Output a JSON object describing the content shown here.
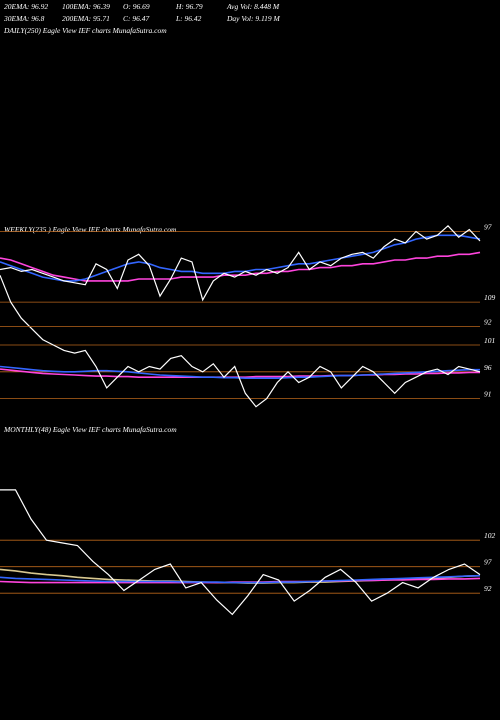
{
  "header": {
    "row1": [
      "20EMA: 96.92",
      "100EMA: 96.39",
      "O: 96.69",
      "H: 96.79",
      "Avg Vol: 8.448 M"
    ],
    "row2": [
      "30EMA: 96.8",
      "200EMA: 95.71",
      "C: 96.47",
      "L: 96.42",
      "Day Vol: 9.119 M"
    ]
  },
  "chart_data": [
    {
      "type": "line",
      "title": "DAILY(250) Eagle View IEF charts MunafaSutra.com",
      "categories": [
        null,
        null,
        null,
        null,
        null,
        null,
        null,
        null,
        null,
        null,
        null,
        null,
        null,
        null,
        null,
        null,
        null,
        null,
        null,
        null,
        null,
        null,
        null,
        null,
        null,
        null,
        null,
        null,
        null,
        null,
        null,
        null,
        null,
        null,
        null,
        null,
        null,
        null,
        null,
        null,
        null,
        null,
        null,
        null,
        null,
        null
      ],
      "ylim": [
        88,
        116
      ],
      "levels": [
        109,
        101,
        96,
        91
      ],
      "level_color": "#b8651b",
      "series": [
        {
          "color": "#ff44dd",
          "values": [
            96.5,
            96.3,
            96.1,
            95.9,
            95.7,
            95.6,
            95.5,
            95.4,
            95.3,
            95.2,
            95.2,
            95.1,
            95.1,
            95.0,
            95.0,
            95.0,
            95.0,
            95.0,
            95.0,
            95.0,
            95.0,
            95.0,
            95.0,
            95.0,
            95.1,
            95.1,
            95.1,
            95.1,
            95.2,
            95.2,
            95.2,
            95.3,
            95.3,
            95.3,
            95.4,
            95.4,
            95.5,
            95.5,
            95.6,
            95.6,
            95.7,
            95.7,
            95.8,
            95.8,
            95.9,
            95.9
          ]
        },
        {
          "color": "#3366ff",
          "values": [
            97,
            96.8,
            96.6,
            96.4,
            96.2,
            96.1,
            96.0,
            96.0,
            96.1,
            96.2,
            96.2,
            96.1,
            96.0,
            95.8,
            95.6,
            95.4,
            95.3,
            95.2,
            95.1,
            95.0,
            95.0,
            94.9,
            94.9,
            94.8,
            94.8,
            94.8,
            94.8,
            94.9,
            95.0,
            95.0,
            95.1,
            95.2,
            95.3,
            95.3,
            95.4,
            95.5,
            95.6,
            95.7,
            95.8,
            95.9,
            96.0,
            96.1,
            96.2,
            96.3,
            96.4,
            96.4
          ]
        },
        {
          "color": "#ffffff",
          "values": [
            114,
            109,
            106,
            104,
            102,
            101,
            100,
            99.5,
            100,
            97,
            93,
            95,
            97,
            96,
            97,
            96.5,
            98.5,
            99,
            97,
            96,
            97.5,
            95,
            97,
            92,
            89.5,
            91,
            94,
            96,
            94,
            95,
            97,
            96,
            93,
            95,
            97,
            96,
            94,
            92,
            94,
            95,
            96,
            96.5,
            95.5,
            97,
            96.5,
            96
          ]
        }
      ]
    },
    {
      "type": "line",
      "title": "WEEKLY(235 ) Eagle View IEF charts MunafaSutra.com",
      "categories": [
        null,
        null,
        null,
        null,
        null,
        null,
        null,
        null,
        null,
        null,
        null,
        null,
        null,
        null,
        null,
        null,
        null,
        null,
        null,
        null,
        null,
        null,
        null,
        null,
        null,
        null,
        null,
        null,
        null,
        null,
        null,
        null,
        null,
        null,
        null,
        null,
        null,
        null,
        null,
        null,
        null,
        null,
        null,
        null,
        null,
        null
      ],
      "ylim": [
        91,
        97.5
      ],
      "levels": [
        97,
        92
      ],
      "level_color": "#b8651b",
      "series": [
        {
          "color": "#ff44dd",
          "values": [
            95.6,
            95.5,
            95.3,
            95.1,
            94.9,
            94.7,
            94.6,
            94.5,
            94.4,
            94.4,
            94.4,
            94.4,
            94.4,
            94.5,
            94.5,
            94.5,
            94.5,
            94.6,
            94.6,
            94.6,
            94.6,
            94.7,
            94.7,
            94.7,
            94.8,
            94.8,
            94.9,
            94.9,
            95.0,
            95.0,
            95.1,
            95.1,
            95.2,
            95.2,
            95.3,
            95.3,
            95.4,
            95.5,
            95.5,
            95.6,
            95.6,
            95.7,
            95.7,
            95.8,
            95.8,
            95.9
          ]
        },
        {
          "color": "#3366ff",
          "values": [
            95.4,
            95.2,
            95.0,
            94.8,
            94.6,
            94.5,
            94.4,
            94.4,
            94.5,
            94.7,
            94.9,
            95.1,
            95.3,
            95.4,
            95.3,
            95.1,
            95.0,
            94.9,
            94.9,
            94.8,
            94.8,
            94.8,
            94.9,
            94.9,
            95.0,
            95.0,
            95.1,
            95.2,
            95.3,
            95.3,
            95.4,
            95.5,
            95.6,
            95.7,
            95.8,
            95.9,
            96.1,
            96.3,
            96.4,
            96.6,
            96.7,
            96.8,
            96.8,
            96.8,
            96.7,
            96.6
          ]
        },
        {
          "color": "#ffffff",
          "values": [
            95.0,
            95.1,
            94.9,
            95.0,
            94.8,
            94.6,
            94.4,
            94.3,
            94.2,
            95.3,
            95.0,
            94.0,
            95.5,
            95.8,
            95.2,
            93.6,
            94.5,
            95.6,
            95.4,
            93.4,
            94.4,
            94.8,
            94.6,
            94.9,
            94.7,
            95.0,
            94.8,
            95.1,
            95.9,
            95.0,
            95.4,
            95.2,
            95.6,
            95.8,
            95.9,
            95.6,
            96.2,
            96.6,
            96.4,
            97.0,
            96.6,
            96.8,
            97.3,
            96.7,
            97.1,
            96.5
          ]
        }
      ]
    },
    {
      "type": "line",
      "title": "MONTHLY(48) Eagle View IEF charts MunafaSutra.com",
      "categories": [
        null,
        null,
        null,
        null,
        null,
        null,
        null,
        null,
        null,
        null,
        null,
        null,
        null,
        null,
        null,
        null,
        null,
        null,
        null,
        null,
        null,
        null,
        null,
        null,
        null,
        null,
        null,
        null,
        null,
        null,
        null,
        null
      ],
      "ylim": [
        86,
        116
      ],
      "levels": [
        102,
        97,
        92
      ],
      "level_color": "#b8651b",
      "series": [
        {
          "color": "#d8c890",
          "values": [
            96.5,
            96.2,
            95.8,
            95.5,
            95.3,
            95.0,
            94.8,
            94.6,
            94.5,
            94.4,
            94.3,
            94.3,
            94.2,
            94.1,
            94.0,
            94.0,
            93.9,
            93.9,
            94.0,
            94.0,
            94.1,
            94.1,
            94.2,
            94.3,
            94.4,
            94.5,
            94.6,
            94.7,
            94.8,
            95.0,
            95.2,
            95.3
          ]
        },
        {
          "color": "#ff44dd",
          "values": [
            94.2,
            94.1,
            94.0,
            94.0,
            94.0,
            94.0,
            94.0,
            94.0,
            94.0,
            94.0,
            94.0,
            94.0,
            94.0,
            94.0,
            94.0,
            94.1,
            94.1,
            94.1,
            94.2,
            94.2,
            94.2,
            94.3,
            94.3,
            94.4,
            94.4,
            94.5,
            94.5,
            94.6,
            94.6,
            94.7,
            94.7,
            94.8
          ]
        },
        {
          "color": "#3366ff",
          "values": [
            95,
            94.8,
            94.7,
            94.6,
            94.5,
            94.4,
            94.3,
            94.2,
            94.2,
            94.2,
            94.2,
            94.2,
            94.1,
            94.1,
            94.1,
            94.0,
            94.0,
            94.0,
            94.1,
            94.1,
            94.2,
            94.3,
            94.4,
            94.5,
            94.6,
            94.7,
            94.8,
            94.9,
            95.0,
            95.1,
            95.2,
            95.3
          ]
        },
        {
          "color": "#ffffff",
          "values": [
            111.5,
            111.5,
            106,
            102,
            101.5,
            101,
            98,
            95.5,
            92.5,
            94.5,
            96.5,
            97.5,
            93,
            94,
            90.7,
            88,
            91.5,
            95.5,
            94.5,
            90.5,
            92.5,
            95,
            96.5,
            94,
            90.5,
            92,
            94,
            93,
            95,
            96.5,
            97.5,
            95.5
          ]
        }
      ]
    }
  ]
}
